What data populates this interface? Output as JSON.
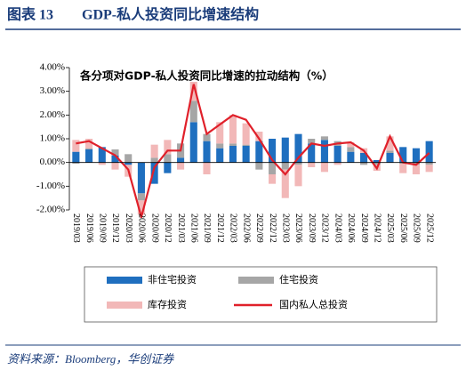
{
  "header": {
    "label": "图表 13",
    "title": "GDP-私人投资同比增速结构"
  },
  "source": "资料来源：Bloomberg，华创证券",
  "chart_data": {
    "type": "bar",
    "stacked": true,
    "title": "各分项对GDP-私人投资同比增速的拉动结构（%）",
    "categories": [
      "2019/03",
      "2019/06",
      "2019/09",
      "2019/12",
      "2020/03",
      "2020/06",
      "2020/09",
      "2020/12",
      "2021/03",
      "2021/06",
      "2021/09",
      "2021/12",
      "2022/03",
      "2022/06",
      "2022/09",
      "2022/12",
      "2023/03",
      "2023/06",
      "2023/09",
      "2023/12",
      "2024/03",
      "2024/06",
      "2024/09",
      "2024/12",
      "2025/03",
      "2025/06",
      "2025/09",
      "2025/12"
    ],
    "series": [
      {
        "name": "非住宅投资",
        "type": "bar",
        "color": "#1f6fbf",
        "values": [
          0.45,
          0.55,
          0.65,
          0.3,
          -0.1,
          -1.3,
          -0.9,
          -0.45,
          0.2,
          1.7,
          0.9,
          0.6,
          0.7,
          0.7,
          0.9,
          1.0,
          1.05,
          1.2,
          0.8,
          0.95,
          0.7,
          0.45,
          0.4,
          0.1,
          0.4,
          0.65,
          0.6,
          0.9
        ]
      },
      {
        "name": "住宅投资",
        "type": "bar",
        "color": "#a6a6a6",
        "values": [
          -0.05,
          0.05,
          0.0,
          0.25,
          0.35,
          -0.3,
          0.2,
          0.35,
          0.6,
          0.9,
          0.3,
          0.2,
          0.1,
          0.05,
          -0.3,
          -0.5,
          -0.3,
          -0.1,
          0.2,
          0.15,
          0.2,
          0.2,
          -0.1,
          -0.1,
          0.1,
          -0.05,
          -0.1,
          -0.1
        ]
      },
      {
        "name": "库存投资",
        "type": "bar",
        "color": "#f2b8b8",
        "values": [
          0.5,
          0.4,
          -0.1,
          -0.3,
          -0.5,
          -0.6,
          0.55,
          0.6,
          -0.3,
          0.8,
          -0.5,
          0.9,
          1.2,
          0.9,
          0.4,
          -0.4,
          -1.2,
          -0.9,
          -0.2,
          -0.4,
          -0.1,
          0.2,
          0.2,
          -0.25,
          0.6,
          -0.4,
          -0.4,
          -0.3
        ]
      },
      {
        "name": "国内私人总投资",
        "type": "line",
        "color": "#e0202a",
        "values": [
          0.8,
          0.9,
          0.6,
          0.3,
          -0.3,
          -2.3,
          -0.2,
          0.5,
          0.5,
          3.3,
          1.2,
          1.6,
          2.0,
          1.8,
          1.0,
          0.1,
          -0.5,
          0.2,
          0.8,
          0.7,
          0.8,
          0.85,
          0.5,
          -0.25,
          1.1,
          0.0,
          -0.1,
          0.4
        ]
      }
    ],
    "ylim": [
      -2,
      4
    ],
    "yticks": [
      {
        "value": -2,
        "label": "-2.00%"
      },
      {
        "value": -1,
        "label": "-1.00%"
      },
      {
        "value": 0,
        "label": "0.00%"
      },
      {
        "value": 1,
        "label": "1.00%"
      },
      {
        "value": 2,
        "label": "2.00%"
      },
      {
        "value": 3,
        "label": "3.00%"
      },
      {
        "value": 4,
        "label": "4.00%"
      }
    ],
    "legend": "bottom"
  }
}
